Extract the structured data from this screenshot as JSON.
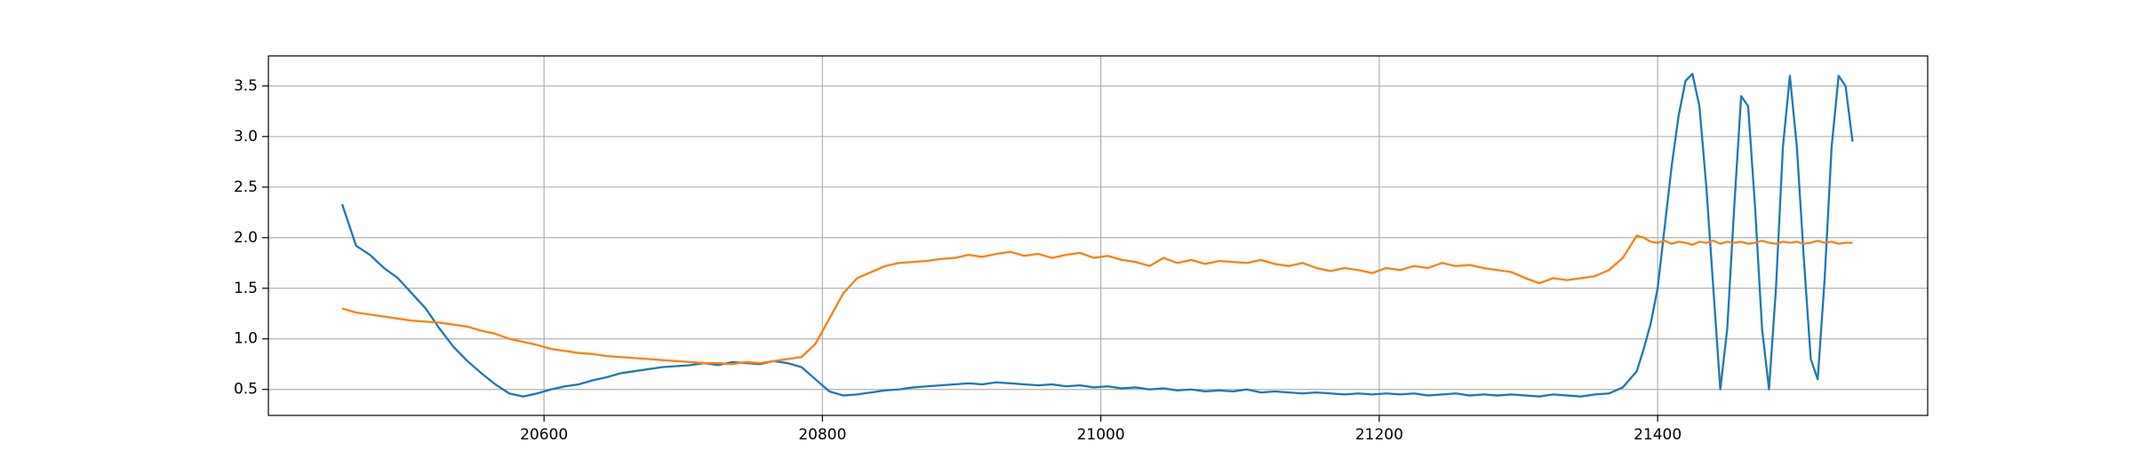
{
  "chart_data": {
    "type": "line",
    "x": [
      20455,
      20465,
      20475,
      20485,
      20495,
      20505,
      20515,
      20525,
      20535,
      20545,
      20555,
      20565,
      20575,
      20585,
      20595,
      20605,
      20615,
      20625,
      20635,
      20645,
      20655,
      20665,
      20675,
      20685,
      20695,
      20705,
      20715,
      20725,
      20735,
      20745,
      20755,
      20765,
      20775,
      20785,
      20795,
      20805,
      20815,
      20825,
      20835,
      20845,
      20855,
      20865,
      20875,
      20885,
      20895,
      20905,
      20915,
      20925,
      20935,
      20945,
      20955,
      20965,
      20975,
      20985,
      20995,
      21005,
      21015,
      21025,
      21035,
      21045,
      21055,
      21065,
      21075,
      21085,
      21095,
      21105,
      21115,
      21125,
      21135,
      21145,
      21155,
      21165,
      21175,
      21185,
      21195,
      21205,
      21215,
      21225,
      21235,
      21245,
      21255,
      21265,
      21275,
      21285,
      21295,
      21305,
      21315,
      21325,
      21335,
      21345,
      21355,
      21365,
      21375,
      21385,
      21390,
      21395,
      21400,
      21405,
      21410,
      21415,
      21420,
      21425,
      21430,
      21435,
      21440,
      21445,
      21450,
      21455,
      21460,
      21465,
      21470,
      21475,
      21480,
      21485,
      21490,
      21495,
      21500,
      21505,
      21510,
      21515,
      21520,
      21525,
      21530,
      21535,
      21540
    ],
    "series": [
      {
        "color": "#1f77b4",
        "values": [
          2.33,
          1.92,
          1.83,
          1.7,
          1.6,
          1.45,
          1.3,
          1.1,
          0.92,
          0.78,
          0.66,
          0.55,
          0.46,
          0.43,
          0.46,
          0.5,
          0.53,
          0.55,
          0.59,
          0.62,
          0.66,
          0.68,
          0.7,
          0.72,
          0.73,
          0.74,
          0.76,
          0.74,
          0.77,
          0.76,
          0.75,
          0.78,
          0.76,
          0.72,
          0.6,
          0.48,
          0.44,
          0.45,
          0.47,
          0.49,
          0.5,
          0.52,
          0.53,
          0.54,
          0.55,
          0.56,
          0.55,
          0.57,
          0.56,
          0.55,
          0.54,
          0.55,
          0.53,
          0.54,
          0.52,
          0.53,
          0.51,
          0.52,
          0.5,
          0.51,
          0.49,
          0.5,
          0.48,
          0.49,
          0.48,
          0.5,
          0.47,
          0.48,
          0.47,
          0.46,
          0.47,
          0.46,
          0.45,
          0.46,
          0.45,
          0.46,
          0.45,
          0.46,
          0.44,
          0.45,
          0.46,
          0.44,
          0.45,
          0.44,
          0.45,
          0.44,
          0.43,
          0.45,
          0.44,
          0.43,
          0.45,
          0.46,
          0.52,
          0.68,
          0.9,
          1.15,
          1.5,
          2.1,
          2.7,
          3.2,
          3.55,
          3.62,
          3.3,
          2.5,
          1.5,
          0.5,
          1.1,
          2.3,
          3.4,
          3.3,
          2.3,
          1.1,
          0.5,
          1.5,
          2.9,
          3.6,
          2.9,
          1.8,
          0.8,
          0.6,
          1.6,
          2.9,
          3.6,
          3.5,
          2.95
        ]
      },
      {
        "color": "#ff7f0e",
        "values": [
          1.3,
          1.26,
          1.24,
          1.22,
          1.2,
          1.18,
          1.17,
          1.16,
          1.14,
          1.12,
          1.08,
          1.05,
          1.0,
          0.97,
          0.94,
          0.9,
          0.88,
          0.86,
          0.85,
          0.83,
          0.82,
          0.81,
          0.8,
          0.79,
          0.78,
          0.77,
          0.76,
          0.76,
          0.75,
          0.77,
          0.76,
          0.78,
          0.8,
          0.82,
          0.95,
          1.2,
          1.45,
          1.6,
          1.66,
          1.72,
          1.75,
          1.76,
          1.77,
          1.79,
          1.8,
          1.83,
          1.81,
          1.84,
          1.86,
          1.82,
          1.84,
          1.8,
          1.83,
          1.85,
          1.8,
          1.82,
          1.78,
          1.76,
          1.72,
          1.8,
          1.75,
          1.78,
          1.74,
          1.77,
          1.76,
          1.75,
          1.78,
          1.74,
          1.72,
          1.75,
          1.7,
          1.67,
          1.7,
          1.68,
          1.65,
          1.7,
          1.68,
          1.72,
          1.7,
          1.75,
          1.72,
          1.73,
          1.7,
          1.68,
          1.66,
          1.6,
          1.55,
          1.6,
          1.58,
          1.6,
          1.62,
          1.68,
          1.8,
          2.02,
          2.0,
          1.96,
          1.95,
          1.97,
          1.94,
          1.96,
          1.95,
          1.93,
          1.96,
          1.95,
          1.97,
          1.94,
          1.96,
          1.95,
          1.96,
          1.94,
          1.95,
          1.97,
          1.95,
          1.94,
          1.96,
          1.95,
          1.96,
          1.94,
          1.95,
          1.97,
          1.95,
          1.96,
          1.94,
          1.95,
          1.95
        ]
      }
    ],
    "xlim": [
      20402,
      21594
    ],
    "ylim": [
      0.243,
      3.797
    ],
    "xticks": [
      20600,
      20800,
      21000,
      21200,
      21400
    ],
    "yticks": [
      0.5,
      {
        "value": 1,
        "label": "1.0"
      },
      1.5,
      {
        "value": 2,
        "label": "2.0"
      },
      2.5,
      {
        "value": 3,
        "label": "3.0"
      },
      3.5
    ],
    "grid": true
  }
}
